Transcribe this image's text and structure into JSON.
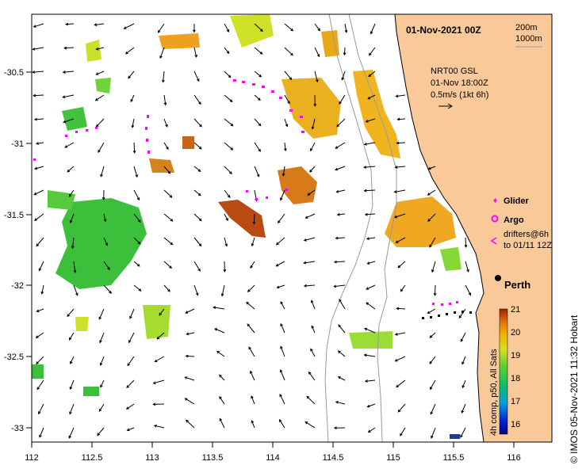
{
  "map": {
    "date_title": "01-Nov-2021 00Z",
    "isobath_labels": [
      "200m",
      "1000m"
    ],
    "current_legend": {
      "product": "NRT00 GSL",
      "time": "01-Nov 18:00Z",
      "scale": "0.5m/s (1kt 6h)"
    },
    "place_label": "Perth",
    "symbol_legend": {
      "glider": "Glider",
      "argo": "Argo",
      "drifters_line1": "drifters@6h",
      "drifters_line2": "to 01/11 12Z"
    },
    "colorbar": {
      "ticks": [
        "21",
        "20",
        "19",
        "18",
        "17",
        "16"
      ],
      "min": 15.6,
      "max": 21,
      "title": "4h comp, p50, All Sats"
    },
    "x_ticks": [
      "112",
      "112.5",
      "113",
      "113.5",
      "114",
      "114.5",
      "115",
      "115.5",
      "116"
    ],
    "y_ticks": [
      "-30.5",
      "-31",
      "-31.5",
      "-32",
      "-32.5",
      "-33"
    ],
    "credit": "© IMOS 05-Nov-2021 11:32 Hobart",
    "colors": {
      "land": "#f9c99a",
      "coast_line": "#000000",
      "isobath": "#9a9a9a",
      "marker": "#ff00ff",
      "arrow": "#000000"
    }
  }
}
